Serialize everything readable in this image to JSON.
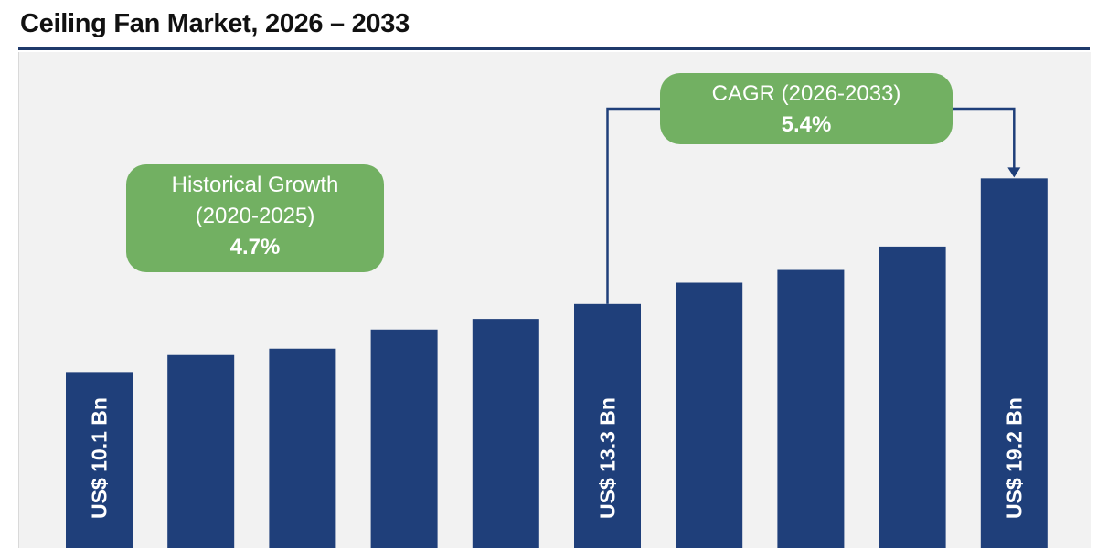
{
  "title": "Ceiling Fan Market, 2026 – 2033",
  "colors": {
    "bar": "#1f3f7a",
    "callout": "#72b062",
    "background": "#f2f2f2",
    "connector": "#1f3f7a"
  },
  "callouts": {
    "historical": {
      "line1": "Historical Growth",
      "line2": "(2020-2025)",
      "value": "4.7%"
    },
    "cagr": {
      "line1": "CAGR (2026-2033)",
      "value": "5.4%"
    }
  },
  "chart_data": {
    "type": "bar",
    "title": "Ceiling Fan Market, 2026 – 2033",
    "values": [
      10.1,
      10.9,
      11.2,
      12.1,
      12.6,
      13.3,
      14.3,
      14.9,
      16.0,
      19.2
    ],
    "data_labels": [
      "US$ 10.1 Bn",
      "",
      "",
      "",
      "",
      "US$ 13.3 Bn",
      "",
      "",
      "",
      "US$ 19.2 Bn"
    ],
    "xlabel": "",
    "ylabel": "",
    "grid": false,
    "legend": "none",
    "annotations": [
      "Historical Growth (2020-2025) 4.7%",
      "CAGR (2026-2033) 5.4%"
    ]
  }
}
